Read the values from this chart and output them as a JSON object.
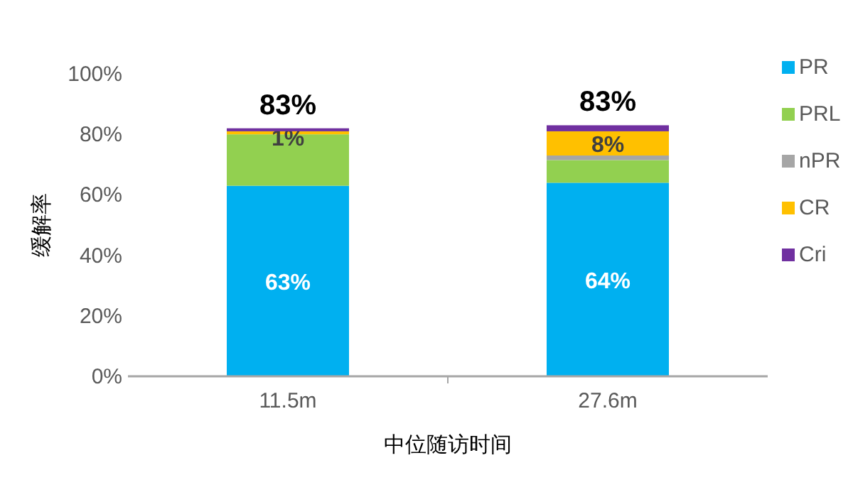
{
  "chart_data": {
    "type": "bar",
    "stacked": true,
    "xlabel": "中位随访时间",
    "ylabel": "缓解率",
    "categories": [
      "11.5m",
      "27.6m"
    ],
    "series": [
      {
        "name": "PR",
        "color": "#00b0f0",
        "values": [
          63,
          64
        ],
        "value_labels": [
          "63%",
          "64%"
        ]
      },
      {
        "name": "PRL",
        "color": "#92d050",
        "values": [
          17,
          7.5
        ]
      },
      {
        "name": "nPR",
        "color": "#a6a6a6",
        "values": [
          0,
          1.5
        ]
      },
      {
        "name": "CR",
        "color": "#ffc000",
        "values": [
          1,
          8
        ],
        "value_labels": [
          "1%",
          "8%"
        ]
      },
      {
        "name": "Cri",
        "color": "#7030a0",
        "values": [
          1,
          2
        ]
      }
    ],
    "totals": [
      "83%",
      "83%"
    ],
    "ylim": [
      0,
      100
    ],
    "yticks": [
      {
        "value": 0,
        "label": "0%"
      },
      {
        "value": 20,
        "label": "20%"
      },
      {
        "value": 40,
        "label": "40%"
      },
      {
        "value": 60,
        "label": "60%"
      },
      {
        "value": 80,
        "label": "80%"
      },
      {
        "value": 100,
        "label": "100%"
      }
    ],
    "legend": "right"
  }
}
